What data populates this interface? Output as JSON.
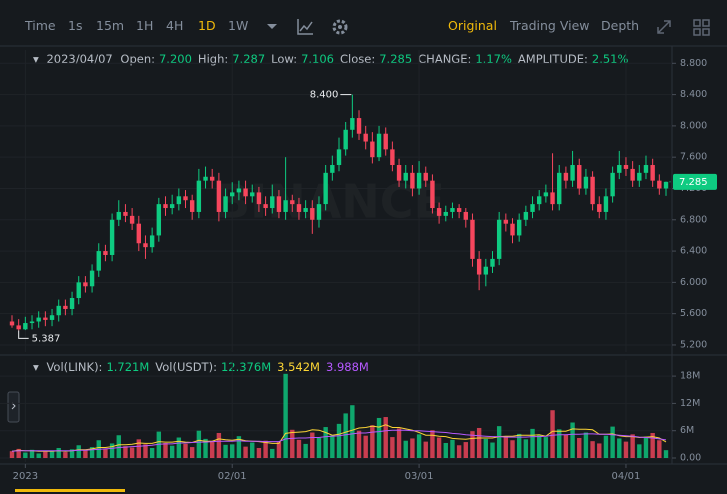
{
  "toolbar": {
    "left": [
      "Time",
      "1s",
      "15m",
      "1H",
      "4H",
      "1D",
      "1W"
    ],
    "left_active": "1D",
    "right": [
      "Original",
      "Trading View",
      "Depth"
    ],
    "right_active": "Original"
  },
  "header": {
    "date": "2023/04/07",
    "items": [
      {
        "label": "Open:",
        "value": "7.200"
      },
      {
        "label": "High:",
        "value": "7.287"
      },
      {
        "label": "Low:",
        "value": "7.106"
      },
      {
        "label": "Close:",
        "value": "7.285"
      },
      {
        "label": "CHANGE:",
        "value": "1.17%"
      },
      {
        "label": "AMPLITUDE:",
        "value": "2.51%"
      }
    ]
  },
  "watermark": "BINANCE",
  "chart_data": [
    {
      "type": "candlestick",
      "up_color": "#0ecb81",
      "down_color": "#f6465d",
      "grid": true,
      "ylim": [
        5.11,
        8.97
      ],
      "yticks": [
        {
          "value": 5.2,
          "label": "5.200"
        },
        {
          "value": 5.6,
          "label": "5.600"
        },
        {
          "value": 6.0,
          "label": "6.000"
        },
        {
          "value": 6.4,
          "label": "6.400"
        },
        {
          "value": 6.8,
          "label": "6.800"
        },
        {
          "value": 7.2,
          "label": "7.200"
        },
        {
          "value": 7.6,
          "label": "7.600"
        },
        {
          "value": 8.0,
          "label": "8.000"
        },
        {
          "value": 8.4,
          "label": "8.400"
        },
        {
          "value": 8.8,
          "label": "8.800"
        }
      ],
      "open": [
        5.5,
        5.45,
        5.4,
        5.48,
        5.5,
        5.55,
        5.52,
        5.58,
        5.7,
        5.66,
        5.8,
        6.0,
        5.95,
        6.15,
        6.4,
        6.35,
        6.8,
        6.9,
        6.85,
        6.75,
        6.5,
        6.45,
        6.6,
        7.0,
        6.95,
        7.0,
        7.1,
        7.05,
        6.9,
        7.3,
        7.35,
        7.3,
        6.9,
        7.1,
        7.15,
        7.2,
        7.1,
        7.15,
        7.0,
        6.95,
        7.1,
        6.9,
        7.05,
        7.0,
        6.9,
        6.95,
        6.8,
        7.0,
        7.4,
        7.5,
        7.7,
        7.95,
        8.1,
        7.9,
        7.8,
        7.6,
        7.9,
        7.7,
        7.5,
        7.3,
        7.4,
        7.2,
        7.4,
        7.3,
        6.95,
        6.85,
        6.9,
        6.95,
        6.9,
        6.8,
        6.3,
        6.1,
        6.2,
        6.3,
        6.8,
        6.75,
        6.6,
        6.8,
        6.9,
        7.0,
        7.1,
        7.15,
        7.0,
        7.4,
        7.3,
        7.5,
        7.2,
        7.35,
        7.0,
        6.9,
        7.1,
        7.4,
        7.5,
        7.45,
        7.3,
        7.4,
        7.5,
        7.3,
        7.2
      ],
      "high": [
        5.58,
        5.53,
        5.56,
        5.58,
        5.63,
        5.63,
        5.66,
        5.78,
        5.78,
        5.88,
        6.08,
        6.08,
        6.23,
        6.5,
        6.48,
        6.88,
        7.05,
        7.0,
        6.95,
        6.85,
        6.6,
        6.7,
        7.08,
        7.1,
        7.12,
        7.2,
        7.18,
        7.12,
        7.45,
        7.48,
        7.45,
        7.4,
        7.2,
        7.28,
        7.3,
        7.3,
        7.25,
        7.22,
        7.1,
        7.25,
        7.18,
        7.6,
        7.12,
        7.08,
        7.05,
        7.05,
        7.1,
        7.5,
        7.62,
        7.85,
        8.05,
        8.4,
        8.2,
        8.0,
        7.92,
        8.0,
        7.98,
        7.8,
        7.58,
        7.5,
        7.5,
        7.55,
        7.48,
        7.38,
        7.02,
        6.98,
        7.02,
        7.0,
        6.95,
        6.88,
        6.4,
        6.3,
        6.4,
        6.9,
        6.88,
        6.82,
        6.88,
        6.98,
        7.1,
        7.18,
        7.25,
        7.65,
        7.5,
        7.48,
        7.68,
        7.58,
        7.45,
        7.42,
        7.1,
        7.2,
        7.48,
        7.68,
        7.6,
        7.55,
        7.5,
        7.62,
        7.58,
        7.38,
        7.287
      ],
      "low": [
        5.42,
        5.387,
        5.39,
        5.4,
        5.42,
        5.44,
        5.44,
        5.5,
        5.58,
        5.58,
        5.72,
        5.87,
        5.87,
        6.07,
        6.27,
        6.27,
        6.72,
        6.77,
        6.67,
        6.4,
        6.3,
        6.38,
        6.52,
        6.85,
        6.87,
        6.92,
        6.95,
        6.8,
        6.82,
        7.2,
        7.2,
        6.78,
        6.82,
        7.0,
        7.05,
        7.0,
        7.02,
        6.9,
        6.85,
        6.88,
        6.82,
        6.8,
        6.9,
        6.8,
        6.82,
        6.62,
        6.7,
        6.92,
        7.3,
        7.42,
        7.62,
        7.85,
        7.82,
        7.7,
        7.52,
        7.55,
        7.62,
        7.42,
        7.22,
        7.2,
        7.1,
        7.12,
        7.22,
        6.88,
        6.75,
        6.78,
        6.82,
        6.82,
        6.7,
        6.2,
        5.9,
        5.95,
        6.12,
        6.22,
        6.65,
        6.5,
        6.52,
        6.72,
        6.82,
        6.92,
        7.02,
        6.92,
        6.92,
        7.2,
        7.22,
        7.12,
        7.12,
        6.92,
        6.82,
        6.8,
        7.02,
        7.32,
        7.36,
        7.22,
        7.22,
        7.32,
        7.22,
        7.12,
        7.106
      ],
      "close": [
        5.45,
        5.4,
        5.48,
        5.5,
        5.55,
        5.52,
        5.58,
        5.7,
        5.66,
        5.8,
        6.0,
        5.95,
        6.15,
        6.4,
        6.35,
        6.8,
        6.9,
        6.85,
        6.75,
        6.5,
        6.45,
        6.6,
        7.0,
        6.95,
        7.0,
        7.1,
        7.05,
        6.9,
        7.3,
        7.35,
        7.3,
        6.9,
        7.1,
        7.15,
        7.2,
        7.1,
        7.15,
        7.0,
        6.95,
        7.1,
        6.9,
        7.05,
        7.0,
        6.9,
        6.95,
        6.8,
        7.0,
        7.4,
        7.5,
        7.7,
        7.95,
        8.1,
        7.9,
        7.8,
        7.6,
        7.9,
        7.7,
        7.5,
        7.3,
        7.4,
        7.2,
        7.4,
        7.3,
        6.95,
        6.85,
        6.9,
        6.95,
        6.9,
        6.8,
        6.3,
        6.1,
        6.2,
        6.3,
        6.8,
        6.75,
        6.6,
        6.8,
        6.9,
        7.0,
        7.1,
        7.15,
        7.0,
        7.4,
        7.3,
        7.5,
        7.2,
        7.35,
        7.0,
        6.9,
        7.1,
        7.4,
        7.5,
        7.45,
        7.3,
        7.4,
        7.5,
        7.3,
        7.2,
        7.285
      ],
      "high_label": {
        "value": 8.4,
        "label": "8.400"
      },
      "low_label": {
        "value": 5.387,
        "label": "5.387"
      }
    },
    {
      "type": "bar",
      "grid": true,
      "legend": [
        {
          "label": "Vol(LINK):",
          "value": "1.721M"
        },
        {
          "label": "Vol(USDT):",
          "value": "12.376M"
        },
        {
          "value": "3.542M",
          "color": "#fcd535"
        },
        {
          "value": "3.988M",
          "color": "#b659ff"
        }
      ],
      "categories": [
        null,
        null,
        "2023",
        null,
        null,
        null,
        null,
        null,
        null,
        null,
        null,
        null,
        null,
        null,
        null,
        null,
        null,
        null,
        null,
        null,
        null,
        null,
        null,
        null,
        null,
        null,
        null,
        null,
        null,
        null,
        null,
        null,
        null,
        "02/01",
        null,
        null,
        null,
        null,
        null,
        null,
        null,
        null,
        null,
        null,
        null,
        null,
        null,
        null,
        null,
        null,
        null,
        null,
        null,
        null,
        null,
        null,
        null,
        null,
        null,
        null,
        null,
        "03/01",
        null,
        null,
        null,
        null,
        null,
        null,
        null,
        null,
        null,
        null,
        null,
        null,
        null,
        null,
        null,
        null,
        null,
        null,
        null,
        null,
        null,
        null,
        null,
        null,
        null,
        null,
        null,
        null,
        null,
        null,
        "04/01",
        null,
        null,
        null,
        null,
        null,
        null
      ],
      "ylim": [
        0,
        18900000
      ],
      "yticks": [
        {
          "value": 0,
          "label": "0.00"
        },
        {
          "value": 6000000,
          "label": "6M"
        },
        {
          "value": 12000000,
          "label": "12M"
        },
        {
          "value": 18000000,
          "label": "18M"
        }
      ],
      "series": [
        {
          "values": [
            1500000,
            2000000,
            1200000,
            1800000,
            1000000,
            1400000,
            1600000,
            2200000,
            1300000,
            1900000,
            2800000,
            1700000,
            2400000,
            3900000,
            2100000,
            3200000,
            5000000,
            2600000,
            2300000,
            4100000,
            3000000,
            2200000,
            5800000,
            3300000,
            2700000,
            4500000,
            3100000,
            2400000,
            6000000,
            4200000,
            3600000,
            5500000,
            2900000,
            3000000,
            4800000,
            2500000,
            3400000,
            2200000,
            3800000,
            2000000,
            3500000,
            18500000,
            6200000,
            4000000,
            3100000,
            5600000,
            4400000,
            6800000,
            5000000,
            7500000,
            9800000,
            11600000,
            6000000,
            4900000,
            7200000,
            8800000,
            9000000,
            4600000,
            6500000,
            3800000,
            4300000,
            5200000,
            3600000,
            6100000,
            4500000,
            3300000,
            4000000,
            2800000,
            3500000,
            5900000,
            6600000,
            4200000,
            3400000,
            7000000,
            4800000,
            3900000,
            5300000,
            4100000,
            6400000,
            5000000,
            4600000,
            10500000,
            6300000,
            5100000,
            7800000,
            4400000,
            5600000,
            3700000,
            3200000,
            4900000,
            6900000,
            4300000,
            3600000,
            5200000,
            3000000,
            4700000,
            5500000,
            3900000,
            1721000
          ]
        },
        {
          "color": "#fcd535",
          "values": [
            1500000,
            1700000,
            1600000,
            1600000,
            1500000,
            1500000,
            1500000,
            1600000,
            1500000,
            1600000,
            1800000,
            1800000,
            2000000,
            2300000,
            2300000,
            2500000,
            2900000,
            2900000,
            3000000,
            3300000,
            3200000,
            3200000,
            3600000,
            3500000,
            3500000,
            3700000,
            3500000,
            3400000,
            3900000,
            3700000,
            3700000,
            4200000,
            4000000,
            3900000,
            4100000,
            3800000,
            3700000,
            3600000,
            3400000,
            3200000,
            3200000,
            5400000,
            5600000,
            5700000,
            5800000,
            6200000,
            6100000,
            5600000,
            5000000,
            5200000,
            5700000,
            6100000,
            6600000,
            6700000,
            7000000,
            6800000,
            7300000,
            6700000,
            6700000,
            6400000,
            6100000,
            5600000,
            5000000,
            5000000,
            4800000,
            4700000,
            4300000,
            4200000,
            4100000,
            4300000,
            4400000,
            4400000,
            4400000,
            4700000,
            4800000,
            4800000,
            5000000,
            5000000,
            5000000,
            5100000,
            4800000,
            5900000,
            5900000,
            5900000,
            6400000,
            6300000,
            6300000,
            6200000,
            5200000,
            5200000,
            5300000,
            4900000,
            4700000,
            4700000,
            4500000,
            4600000,
            4700000,
            4400000,
            3542000
          ]
        },
        {
          "color": "#b659ff",
          "values": [
            1500000,
            1600000,
            1600000,
            1600000,
            1600000,
            1600000,
            1600000,
            1600000,
            1600000,
            1600000,
            1700000,
            1700000,
            1800000,
            1900000,
            2000000,
            2100000,
            2300000,
            2400000,
            2500000,
            2600000,
            2700000,
            2800000,
            3000000,
            3100000,
            3100000,
            3300000,
            3300000,
            3400000,
            3500000,
            3500000,
            3600000,
            3700000,
            3700000,
            3700000,
            3800000,
            3700000,
            3700000,
            3700000,
            3600000,
            3600000,
            3600000,
            4200000,
            4300000,
            4400000,
            4400000,
            4500000,
            4500000,
            4700000,
            4800000,
            4900000,
            5100000,
            5300000,
            5500000,
            5500000,
            5700000,
            5800000,
            6000000,
            6100000,
            6100000,
            6100000,
            6000000,
            6000000,
            5900000,
            5800000,
            5700000,
            5600000,
            5400000,
            5300000,
            5100000,
            5000000,
            4900000,
            4800000,
            4700000,
            4700000,
            4600000,
            4600000,
            4600000,
            4600000,
            4700000,
            4700000,
            4800000,
            5000000,
            5100000,
            5100000,
            5200000,
            5200000,
            5300000,
            5300000,
            5200000,
            5200000,
            5100000,
            5000000,
            4900000,
            4800000,
            4600000,
            4500000,
            4400000,
            4200000,
            3988000
          ]
        }
      ]
    }
  ]
}
